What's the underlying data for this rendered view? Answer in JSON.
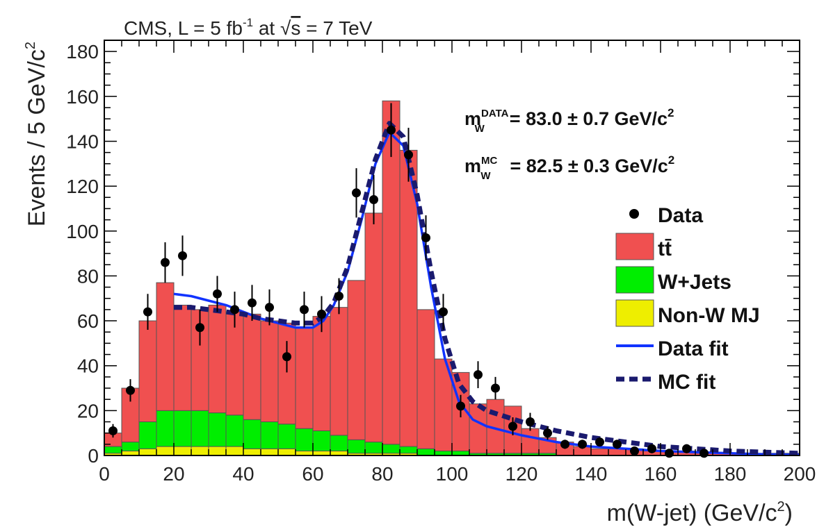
{
  "header": {
    "experiment": "CMS, L = 5 fb",
    "lumi_exp": "-1",
    "energy_prefix": " at ",
    "sqrt_symbol": "√",
    "energy_var": "s",
    "energy_value": " = 7 TeV"
  },
  "annotations": {
    "data_label": "m",
    "data_sup": "DATA",
    "data_sub": "W",
    "data_value": "= 83.0 ± 0.7 GeV/c",
    "data_exp": "2",
    "mc_label": "m",
    "mc_sup": "MC",
    "mc_sub": "W",
    "mc_value": "= 82.5 ± 0.3 GeV/c",
    "mc_exp": "2"
  },
  "colors": {
    "ttbar": "#f05050",
    "wjets": "#00ee00",
    "nonw": "#eeee00",
    "data_fit": "#1133ff",
    "mc_fit": "#1a1a6e",
    "data": "#000000"
  },
  "chart_data": {
    "type": "bar",
    "subtype": "stacked-histogram",
    "xlabel_main": "m(W-jet) (GeV/c",
    "xlabel_exp": "2",
    "xlabel_end": ")",
    "ylabel_main": "Events / 5 GeV/c",
    "ylabel_exp": "2",
    "xlim": [
      0,
      200
    ],
    "ylim": [
      0,
      185
    ],
    "xticks": [
      0,
      20,
      40,
      60,
      80,
      100,
      120,
      140,
      160,
      180,
      200
    ],
    "yticks": [
      0,
      20,
      40,
      60,
      80,
      100,
      120,
      140,
      160,
      180
    ],
    "bin_width": 5,
    "bin_edges_start": 0,
    "series": [
      {
        "name": "Non-W MJ",
        "color_key": "nonw",
        "values": [
          1,
          2,
          3,
          4,
          4,
          4,
          4,
          4,
          3,
          3,
          3,
          2,
          2,
          2,
          1,
          1,
          1,
          1,
          0,
          0,
          0,
          0,
          0,
          0,
          0,
          0,
          0,
          0,
          0,
          0,
          0,
          0,
          0,
          0,
          0,
          0,
          0,
          0,
          0,
          0
        ]
      },
      {
        "name": "W+Jets",
        "color_key": "wjets",
        "values": [
          3,
          4,
          12,
          16,
          16,
          16,
          15,
          14,
          13,
          12,
          11,
          10,
          9,
          7,
          6,
          5,
          4,
          3,
          3,
          2,
          2,
          1,
          1,
          1,
          1,
          1,
          0,
          0,
          0,
          0,
          0,
          0,
          0,
          0,
          0,
          0,
          0,
          0,
          0,
          0
        ]
      },
      {
        "name": "tt̄",
        "color_key": "ttbar",
        "values": [
          6,
          24,
          45,
          57,
          47,
          45,
          48,
          46,
          47,
          45,
          45,
          45,
          51,
          57,
          71,
          102,
          153,
          132,
          62,
          41,
          35,
          22,
          24,
          21,
          11,
          7,
          6,
          4,
          3,
          3,
          3,
          2,
          2,
          2,
          1,
          1,
          1,
          1,
          1,
          1
        ]
      }
    ],
    "data_points": {
      "name": "Data",
      "x": [
        2.5,
        7.5,
        12.5,
        17.5,
        22.5,
        27.5,
        32.5,
        37.5,
        42.5,
        47.5,
        52.5,
        57.5,
        62.5,
        67.5,
        72.5,
        77.5,
        82.5,
        87.5,
        92.5,
        97.5,
        102.5,
        107.5,
        112.5,
        117.5,
        122.5,
        127.5,
        132.5,
        137.5,
        142.5,
        147.5,
        152.5,
        157.5,
        162.5,
        167.5,
        172.5,
        177.5,
        182.5,
        187.5,
        192.5,
        197.5
      ],
      "y": [
        11,
        29,
        64,
        86,
        89,
        57,
        72,
        65,
        68,
        66,
        44,
        65,
        63,
        71,
        117,
        114,
        145,
        134,
        97,
        64,
        22,
        36,
        30,
        13,
        15,
        10,
        5,
        5,
        6,
        5,
        2,
        3,
        1,
        3,
        1,
        0,
        0,
        0,
        0,
        0
      ],
      "err": [
        3,
        5,
        8,
        9,
        9,
        8,
        8,
        8,
        8,
        8,
        7,
        8,
        8,
        8,
        11,
        11,
        12,
        12,
        10,
        8,
        5,
        6,
        5,
        4,
        4,
        3,
        2,
        2,
        2,
        2,
        1,
        2,
        1,
        2,
        1,
        0,
        0,
        0,
        0,
        0
      ]
    },
    "fits": [
      {
        "name": "Data fit",
        "color_key": "data_fit",
        "style": "solid",
        "x": [
          20,
          25,
          30,
          35,
          40,
          45,
          50,
          55,
          60,
          63,
          66,
          70,
          74,
          78,
          82,
          86,
          90,
          94,
          98,
          102,
          106,
          110,
          120,
          130,
          140,
          150,
          160,
          170,
          180,
          190,
          200
        ],
        "y": [
          72,
          71,
          69,
          67,
          64,
          61,
          59,
          57,
          57,
          60,
          67,
          82,
          105,
          130,
          144,
          138,
          112,
          75,
          43,
          24,
          16,
          13,
          9,
          6,
          4,
          3,
          2,
          1.5,
          1,
          0.5,
          0.3
        ]
      },
      {
        "name": "MC fit",
        "color_key": "mc_fit",
        "style": "dashed",
        "x": [
          20,
          25,
          30,
          35,
          40,
          45,
          50,
          55,
          60,
          63,
          66,
          70,
          74,
          78,
          82,
          86,
          90,
          94,
          98,
          102,
          106,
          110,
          120,
          130,
          140,
          150,
          160,
          170,
          180,
          190,
          200
        ],
        "y": [
          66,
          66,
          65,
          64,
          63,
          61,
          60,
          59,
          59,
          62,
          68,
          84,
          108,
          132,
          148,
          142,
          116,
          82,
          52,
          32,
          24,
          20,
          15,
          11,
          8,
          6,
          4,
          3,
          2,
          1.5,
          1
        ]
      }
    ],
    "legend": {
      "placement": "right",
      "entries": [
        {
          "label": "Data",
          "kind": "marker",
          "color_key": "data"
        },
        {
          "label": "tt̄",
          "kind": "box",
          "color_key": "ttbar"
        },
        {
          "label": "W+Jets",
          "kind": "box",
          "color_key": "wjets"
        },
        {
          "label": "Non-W MJ",
          "kind": "box",
          "color_key": "nonw"
        },
        {
          "label": "Data fit",
          "kind": "line",
          "color_key": "data_fit"
        },
        {
          "label": "MC fit",
          "kind": "dashed",
          "color_key": "mc_fit"
        }
      ]
    }
  }
}
